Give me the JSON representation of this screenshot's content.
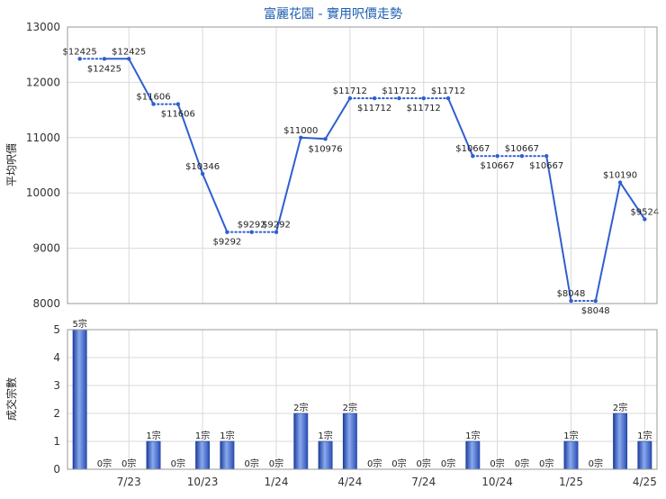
{
  "chart_data": [
    {
      "type": "line",
      "title": "富麗花園 - 實用呎價走勢",
      "ylabel": "平均呎價",
      "ylim": [
        8000,
        13000
      ],
      "yticks": [
        "8000",
        "9000",
        "10000",
        "11000",
        "12000",
        "13000"
      ],
      "x": [
        "2023-05",
        "2023-06",
        "2023-07",
        "2023-08",
        "2023-09",
        "2023-10",
        "2023-11",
        "2023-12",
        "2024-01",
        "2024-02",
        "2024-03",
        "2024-04",
        "2024-05",
        "2024-06",
        "2024-07",
        "2024-08",
        "2024-09",
        "2024-10",
        "2024-11",
        "2024-12",
        "2025-01",
        "2025-02",
        "2025-03",
        "2025-04"
      ],
      "values": [
        12425,
        12425,
        12425,
        11606,
        11606,
        10346,
        9292,
        9292,
        9292,
        11000,
        10976,
        11712,
        11712,
        11712,
        11712,
        11712,
        10667,
        10667,
        10667,
        10667,
        8048,
        8048,
        10190,
        9524
      ],
      "labels": [
        "$12425",
        "$12425",
        "$12425",
        "$11606",
        "$11606",
        "$10346",
        "$9292",
        "$9292",
        "$9292",
        "$11000",
        "$10976",
        "$11712",
        "$11712",
        "$11712",
        "$11712",
        "$11712",
        "$10667",
        "$10667",
        "$10667",
        "$10667",
        "$8048",
        "$8048",
        "$10190",
        "$9524"
      ],
      "dotted_points": [
        1,
        4,
        7,
        8,
        12,
        13,
        14,
        15,
        17,
        18,
        19,
        21
      ],
      "grid": true,
      "color": "#2f5fcf"
    },
    {
      "type": "bar",
      "ylabel": "成交宗數",
      "ylim": [
        0,
        5
      ],
      "yticks": [
        "0",
        "1",
        "2",
        "3",
        "4",
        "5"
      ],
      "xtick_labels": [
        "7/23",
        "10/23",
        "1/24",
        "4/24",
        "7/24",
        "10/24",
        "1/25",
        "4/25"
      ],
      "values": [
        5,
        0,
        0,
        1,
        0,
        1,
        1,
        0,
        0,
        2,
        1,
        2,
        0,
        0,
        0,
        0,
        1,
        0,
        0,
        0,
        1,
        0,
        2,
        1
      ],
      "labels": [
        "5宗",
        "0宗",
        "0宗",
        "1宗",
        "0宗",
        "1宗",
        "1宗",
        "0宗",
        "0宗",
        "2宗",
        "1宗",
        "2宗",
        "0宗",
        "0宗",
        "0宗",
        "0宗",
        "1宗",
        "0宗",
        "0宗",
        "0宗",
        "1宗",
        "0宗",
        "2宗",
        "1宗"
      ],
      "grid": true,
      "color": "#3a64c8"
    }
  ]
}
